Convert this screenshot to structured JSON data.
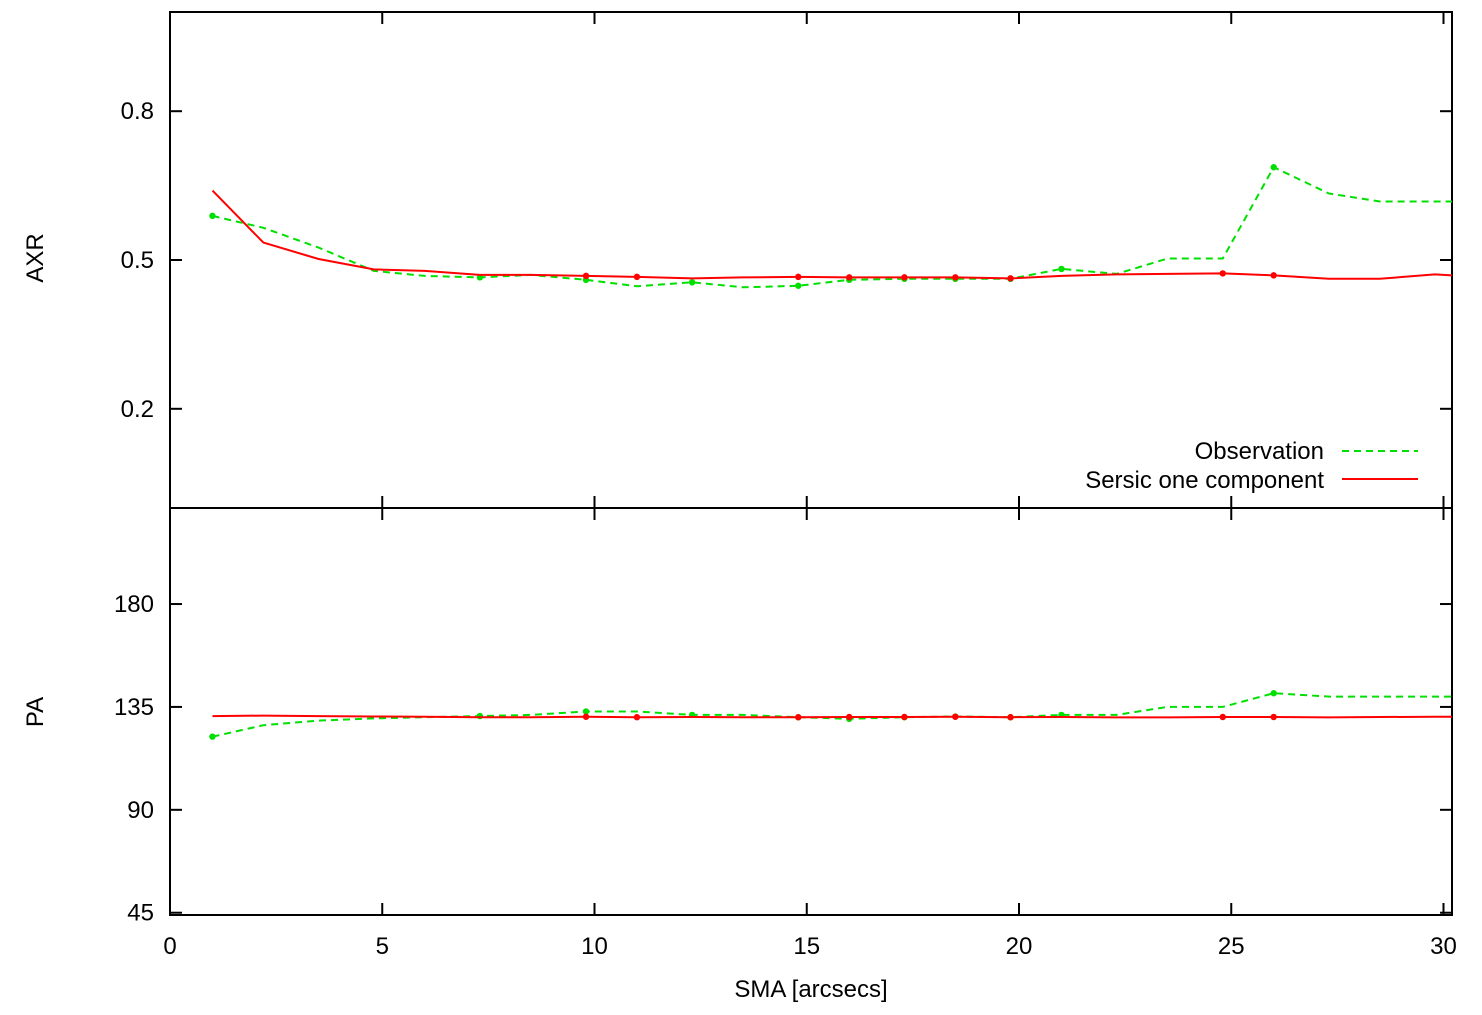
{
  "chart_data": [
    {
      "panel": "top",
      "type": "line",
      "ylabel": "AXR",
      "xlabel": "",
      "xlim": [
        0,
        30.2
      ],
      "ylim": [
        0,
        1.0
      ],
      "x_ticks": [
        "0",
        "5",
        "10",
        "15",
        "20",
        "25",
        "30"
      ],
      "x_tick_values": [
        0,
        5,
        10,
        15,
        20,
        25,
        30
      ],
      "y_ticks": [
        "0.2",
        "0.5",
        "0.8"
      ],
      "y_tick_values": [
        0.2,
        0.5,
        0.8
      ],
      "grid": false,
      "legend": {
        "placement": "bottom-right",
        "entries": [
          "Observation",
          "Sersic one component"
        ]
      },
      "series": [
        {
          "name": "Observation",
          "color": "#00e000",
          "style": "dashed",
          "x": [
            1.0,
            2.2,
            3.5,
            4.8,
            6.0,
            7.3,
            8.5,
            9.8,
            11.0,
            12.3,
            13.5,
            14.8,
            16.0,
            17.3,
            18.5,
            19.8,
            21.0,
            22.3,
            23.5,
            24.8,
            26.0,
            27.3,
            28.5,
            29.8,
            30.2
          ],
          "y": [
            0.589,
            0.565,
            0.525,
            0.478,
            0.468,
            0.465,
            0.47,
            0.46,
            0.447,
            0.455,
            0.445,
            0.448,
            0.46,
            0.462,
            0.462,
            0.462,
            0.482,
            0.472,
            0.503,
            0.503,
            0.687,
            0.634,
            0.618,
            0.618,
            0.618
          ],
          "markers_x": [
            1.0,
            7.3,
            9.8,
            12.3,
            14.8,
            16.0,
            17.3,
            18.5,
            19.8,
            21.0,
            26.0
          ],
          "markers_y": [
            0.589,
            0.465,
            0.46,
            0.455,
            0.448,
            0.46,
            0.462,
            0.462,
            0.462,
            0.482,
            0.687
          ]
        },
        {
          "name": "Sersic one component",
          "color": "#ff0000",
          "style": "solid",
          "x": [
            1.0,
            2.2,
            3.5,
            4.8,
            6.0,
            7.3,
            8.5,
            9.8,
            11.0,
            12.3,
            13.5,
            14.8,
            16.0,
            17.3,
            18.5,
            19.8,
            21.0,
            22.3,
            23.5,
            24.8,
            26.0,
            27.3,
            28.5,
            29.8,
            30.2
          ],
          "y": [
            0.64,
            0.535,
            0.502,
            0.481,
            0.478,
            0.47,
            0.47,
            0.468,
            0.466,
            0.463,
            0.465,
            0.466,
            0.465,
            0.465,
            0.465,
            0.463,
            0.468,
            0.471,
            0.472,
            0.473,
            0.469,
            0.462,
            0.462,
            0.471,
            0.469
          ],
          "markers_x": [
            9.8,
            11.0,
            14.8,
            16.0,
            17.3,
            18.5,
            19.8,
            24.8,
            26.0
          ],
          "markers_y": [
            0.468,
            0.466,
            0.466,
            0.465,
            0.465,
            0.465,
            0.463,
            0.473,
            0.469
          ]
        }
      ]
    },
    {
      "panel": "bottom",
      "type": "line",
      "ylabel": "PA",
      "xlabel": "SMA [arcsecs]",
      "xlim": [
        0,
        30.2
      ],
      "ylim": [
        44,
        222
      ],
      "x_ticks": [
        "0",
        "5",
        "10",
        "15",
        "20",
        "25",
        "30"
      ],
      "x_tick_values": [
        0,
        5,
        10,
        15,
        20,
        25,
        30
      ],
      "y_ticks": [
        "45",
        "90",
        "135",
        "180"
      ],
      "y_tick_values": [
        45,
        90,
        135,
        180
      ],
      "grid": false,
      "series": [
        {
          "name": "Observation",
          "color": "#00e000",
          "style": "dashed",
          "x": [
            1.0,
            2.2,
            3.5,
            4.8,
            6.0,
            7.3,
            8.5,
            9.8,
            11.0,
            12.3,
            13.5,
            14.8,
            16.0,
            17.3,
            18.5,
            19.8,
            21.0,
            22.3,
            23.5,
            24.8,
            26.0,
            27.3,
            28.5,
            29.8,
            30.2
          ],
          "y": [
            122,
            127,
            129,
            130,
            130.5,
            131,
            131.5,
            133,
            133,
            131.5,
            131.5,
            130.5,
            129.8,
            130.5,
            130.8,
            130.5,
            131.5,
            131.5,
            135,
            135,
            141,
            139.5,
            139.5,
            139.5,
            139.5
          ],
          "markers_x": [
            1.0,
            7.3,
            9.8,
            12.3,
            14.8,
            16.0,
            17.3,
            18.5,
            19.8,
            21.0,
            26.0
          ],
          "markers_y": [
            122,
            131,
            133,
            131.5,
            130.5,
            129.8,
            130.5,
            130.8,
            130.5,
            131.5,
            141
          ]
        },
        {
          "name": "Sersic one component",
          "color": "#ff0000",
          "style": "solid",
          "x": [
            1.0,
            2.2,
            3.5,
            4.8,
            6.0,
            7.3,
            8.5,
            9.8,
            11.0,
            12.3,
            13.5,
            14.8,
            16.0,
            17.3,
            18.5,
            19.8,
            21.0,
            22.3,
            23.5,
            24.8,
            26.0,
            27.3,
            28.5,
            29.8,
            30.2
          ],
          "y": [
            131,
            131.2,
            131,
            130.8,
            130.7,
            130.5,
            130.5,
            130.7,
            130.5,
            130.6,
            130.5,
            130.5,
            130.6,
            130.6,
            130.7,
            130.5,
            130.6,
            130.4,
            130.4,
            130.6,
            130.6,
            130.4,
            130.6,
            130.7,
            130.7
          ],
          "markers_x": [
            9.8,
            11.0,
            14.8,
            16.0,
            17.3,
            18.5,
            19.8,
            24.8,
            26.0
          ],
          "markers_y": [
            130.7,
            130.5,
            130.5,
            130.6,
            130.6,
            130.7,
            130.5,
            130.6,
            130.6
          ]
        }
      ]
    }
  ]
}
